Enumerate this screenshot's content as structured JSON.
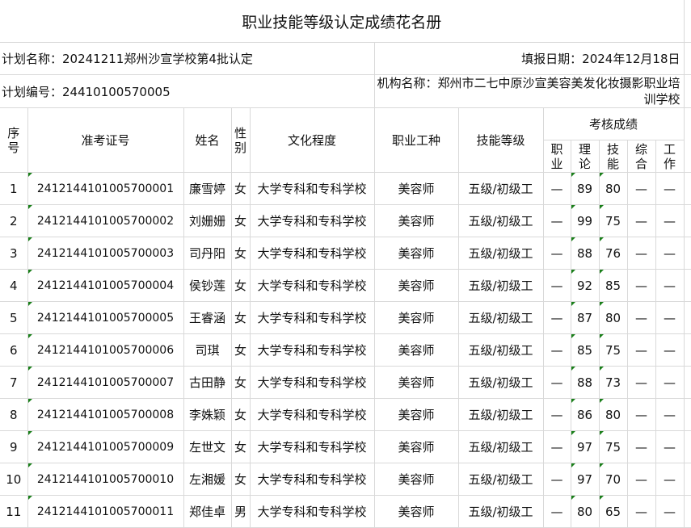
{
  "title": "职业技能等级认定成绩花名册",
  "plan_name": "计划名称：20241211郑州沙宣学校第4批认定",
  "fill_date": "填报日期：2024年12月18日",
  "plan_number": "计划编号：24410100570005",
  "institution": "机构名称：郑州市二七中原沙宣美容美发化妆摄影职业培训学校",
  "headers": {
    "seq": "序号",
    "exam_id": "准考证号",
    "name": "姓名",
    "gender": "性别",
    "education": "文化程度",
    "occupation": "职业工种",
    "skill_level": "技能等级",
    "scores": "考核成绩",
    "sub": [
      "职业",
      "理论",
      "技能",
      "综合",
      "工作"
    ]
  },
  "rows": [
    {
      "seq": "1",
      "id": "2412144101005700001",
      "name": "廉雪婷",
      "gender": "女",
      "edu": "大学专科和专科学校",
      "occ": "美容师",
      "level": "五级/初级工",
      "s1": "—",
      "s2": "89",
      "s3": "80",
      "s4": "—",
      "s5": "—"
    },
    {
      "seq": "2",
      "id": "2412144101005700002",
      "name": "刘姗姗",
      "gender": "女",
      "edu": "大学专科和专科学校",
      "occ": "美容师",
      "level": "五级/初级工",
      "s1": "—",
      "s2": "99",
      "s3": "75",
      "s4": "—",
      "s5": "—"
    },
    {
      "seq": "3",
      "id": "2412144101005700003",
      "name": "司丹阳",
      "gender": "女",
      "edu": "大学专科和专科学校",
      "occ": "美容师",
      "level": "五级/初级工",
      "s1": "—",
      "s2": "88",
      "s3": "76",
      "s4": "—",
      "s5": "—"
    },
    {
      "seq": "4",
      "id": "2412144101005700004",
      "name": "侯钞莲",
      "gender": "女",
      "edu": "大学专科和专科学校",
      "occ": "美容师",
      "level": "五级/初级工",
      "s1": "—",
      "s2": "92",
      "s3": "85",
      "s4": "—",
      "s5": "—"
    },
    {
      "seq": "5",
      "id": "2412144101005700005",
      "name": "王睿涵",
      "gender": "女",
      "edu": "大学专科和专科学校",
      "occ": "美容师",
      "level": "五级/初级工",
      "s1": "—",
      "s2": "87",
      "s3": "80",
      "s4": "—",
      "s5": "—"
    },
    {
      "seq": "6",
      "id": "2412144101005700006",
      "name": "司琪",
      "gender": "女",
      "edu": "大学专科和专科学校",
      "occ": "美容师",
      "level": "五级/初级工",
      "s1": "—",
      "s2": "85",
      "s3": "75",
      "s4": "—",
      "s5": "—"
    },
    {
      "seq": "7",
      "id": "2412144101005700007",
      "name": "古田静",
      "gender": "女",
      "edu": "大学专科和专科学校",
      "occ": "美容师",
      "level": "五级/初级工",
      "s1": "—",
      "s2": "88",
      "s3": "73",
      "s4": "—",
      "s5": "—"
    },
    {
      "seq": "8",
      "id": "2412144101005700008",
      "name": "李姝颖",
      "gender": "女",
      "edu": "大学专科和专科学校",
      "occ": "美容师",
      "level": "五级/初级工",
      "s1": "—",
      "s2": "86",
      "s3": "80",
      "s4": "—",
      "s5": "—"
    },
    {
      "seq": "9",
      "id": "2412144101005700009",
      "name": "左世文",
      "gender": "女",
      "edu": "大学专科和专科学校",
      "occ": "美容师",
      "level": "五级/初级工",
      "s1": "—",
      "s2": "97",
      "s3": "75",
      "s4": "—",
      "s5": "—"
    },
    {
      "seq": "10",
      "id": "2412144101005700010",
      "name": "左湘媛",
      "gender": "女",
      "edu": "大学专科和专科学校",
      "occ": "美容师",
      "level": "五级/初级工",
      "s1": "—",
      "s2": "97",
      "s3": "70",
      "s4": "—",
      "s5": "—"
    },
    {
      "seq": "11",
      "id": "2412144101005700011",
      "name": "郑佳卓",
      "gender": "男",
      "edu": "大学专科和专科学校",
      "occ": "美容师",
      "level": "五级/初级工",
      "s1": "—",
      "s2": "80",
      "s3": "65",
      "s4": "—",
      "s5": "—"
    }
  ]
}
